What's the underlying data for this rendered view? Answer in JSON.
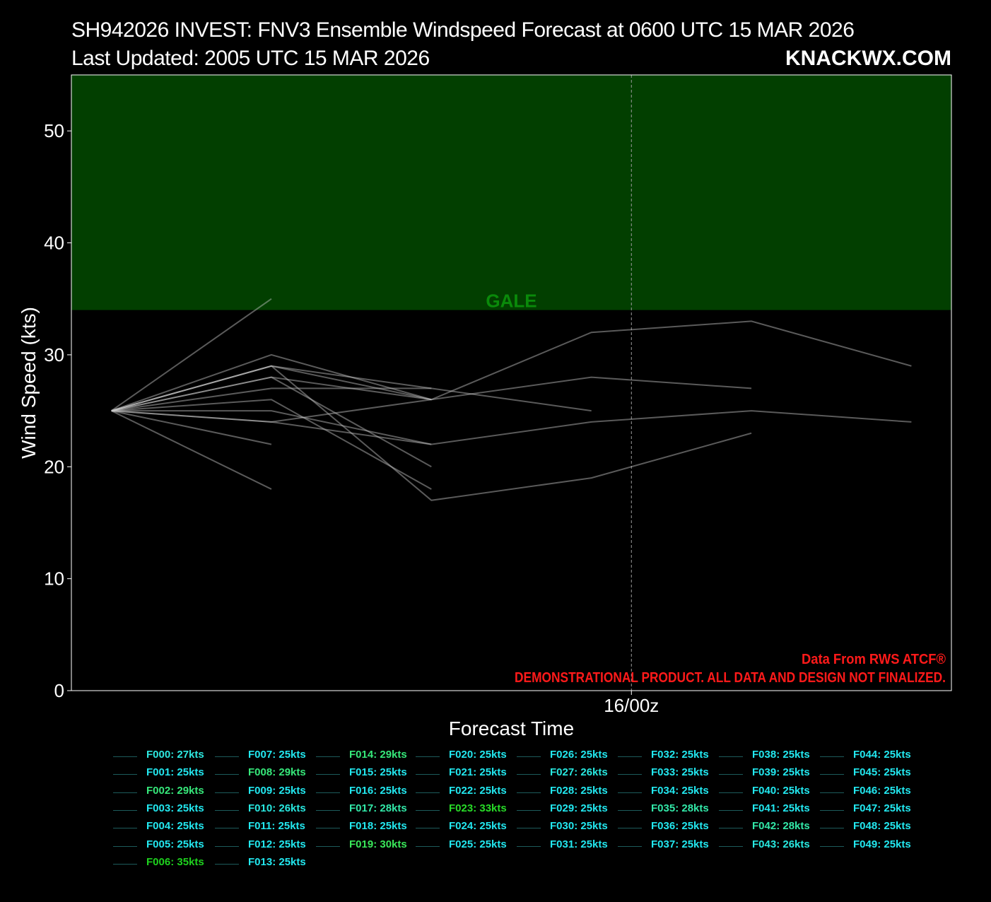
{
  "header": {
    "title": "SH942026 INVEST: FNV3 Ensemble Windspeed Forecast at 0600 UTC 15 MAR 2026",
    "subtitle": "Last Updated: 2005 UTC 15 MAR 2026",
    "brand": "KNACKWX.COM"
  },
  "chart_data": {
    "type": "line",
    "xlabel": "Forecast Time",
    "ylabel": "Wind Speed (kts)",
    "xticks": [
      {
        "step": 3.25,
        "label": "16/00z"
      }
    ],
    "ylim": [
      0,
      55
    ],
    "xlim": [
      -0.25,
      5.25
    ],
    "yticks": [
      0,
      10,
      20,
      30,
      40,
      50
    ],
    "threshold": {
      "label": "GALE",
      "value": 34,
      "color": "#023f00"
    },
    "vline_step": 3.25,
    "colors": {
      "line": "#8a8a8a",
      "gale_text": "#0a8a0a",
      "notice": "#ff1a1a"
    },
    "notices": [
      "Data From RWS ATCF®",
      "DEMONSTRATIONAL PRODUCT. ALL DATA AND DESIGN NOT FINALIZED."
    ],
    "series": [
      {
        "values": [
          25,
          35
        ]
      },
      {
        "values": [
          25,
          18
        ]
      },
      {
        "values": [
          25,
          22
        ]
      },
      {
        "values": [
          25,
          25,
          22
        ]
      },
      {
        "values": [
          25,
          24,
          22
        ]
      },
      {
        "values": [
          25,
          26,
          18
        ]
      },
      {
        "values": [
          25,
          27,
          27
        ]
      },
      {
        "values": [
          25,
          28,
          26,
          32,
          33,
          29
        ]
      },
      {
        "values": [
          25,
          28,
          20
        ]
      },
      {
        "values": [
          25,
          29,
          27,
          25
        ]
      },
      {
        "values": [
          25,
          29,
          26,
          28,
          27
        ]
      },
      {
        "values": [
          25,
          29,
          17,
          19,
          23
        ]
      },
      {
        "values": [
          25,
          30,
          26
        ]
      },
      {
        "values": [
          25,
          24,
          26
        ]
      },
      {
        "values": [
          null,
          null,
          22,
          24,
          25,
          24
        ]
      }
    ],
    "legend": [
      {
        "label": "F000: 27kts",
        "color": "#2de8e0"
      },
      {
        "label": "F001: 25kts",
        "color": "#22e8f0"
      },
      {
        "label": "F002: 29kts",
        "color": "#36e87a"
      },
      {
        "label": "F003: 25kts",
        "color": "#22e8f0"
      },
      {
        "label": "F004: 25kts",
        "color": "#22e8f0"
      },
      {
        "label": "F005: 25kts",
        "color": "#22e8f0"
      },
      {
        "label": "F006: 35kts",
        "color": "#1ed21e"
      },
      {
        "label": "F007: 25kts",
        "color": "#22e8f0"
      },
      {
        "label": "F008: 29kts",
        "color": "#36e87a"
      },
      {
        "label": "F009: 25kts",
        "color": "#22e8f0"
      },
      {
        "label": "F010: 26kts",
        "color": "#28e8e0"
      },
      {
        "label": "F011: 25kts",
        "color": "#22e8f0"
      },
      {
        "label": "F012: 25kts",
        "color": "#22e8f0"
      },
      {
        "label": "F013: 25kts",
        "color": "#22e8f0"
      },
      {
        "label": "F014: 29kts",
        "color": "#36e87a"
      },
      {
        "label": "F015: 25kts",
        "color": "#22e8f0"
      },
      {
        "label": "F016: 25kts",
        "color": "#22e8f0"
      },
      {
        "label": "F017: 28kts",
        "color": "#32e8a8"
      },
      {
        "label": "F018: 25kts",
        "color": "#22e8f0"
      },
      {
        "label": "F019: 30kts",
        "color": "#3ae85a"
      },
      {
        "label": "F020: 25kts",
        "color": "#22e8f0"
      },
      {
        "label": "F021: 25kts",
        "color": "#22e8f0"
      },
      {
        "label": "F022: 25kts",
        "color": "#22e8f0"
      },
      {
        "label": "F023: 33kts",
        "color": "#28dc28"
      },
      {
        "label": "F024: 25kts",
        "color": "#22e8f0"
      },
      {
        "label": "F025: 25kts",
        "color": "#22e8f0"
      },
      {
        "label": "F026: 25kts",
        "color": "#22e8f0"
      },
      {
        "label": "F027: 26kts",
        "color": "#28e8e0"
      },
      {
        "label": "F028: 25kts",
        "color": "#22e8f0"
      },
      {
        "label": "F029: 25kts",
        "color": "#22e8f0"
      },
      {
        "label": "F030: 25kts",
        "color": "#22e8f0"
      },
      {
        "label": "F031: 25kts",
        "color": "#22e8f0"
      },
      {
        "label": "F032: 25kts",
        "color": "#22e8f0"
      },
      {
        "label": "F033: 25kts",
        "color": "#22e8f0"
      },
      {
        "label": "F034: 25kts",
        "color": "#22e8f0"
      },
      {
        "label": "F035: 28kts",
        "color": "#32e8a8"
      },
      {
        "label": "F036: 25kts",
        "color": "#22e8f0"
      },
      {
        "label": "F037: 25kts",
        "color": "#22e8f0"
      },
      {
        "label": "F038: 25kts",
        "color": "#22e8f0"
      },
      {
        "label": "F039: 25kts",
        "color": "#22e8f0"
      },
      {
        "label": "F040: 25kts",
        "color": "#22e8f0"
      },
      {
        "label": "F041: 25kts",
        "color": "#22e8f0"
      },
      {
        "label": "F042: 28kts",
        "color": "#32e8a8"
      },
      {
        "label": "F043: 26kts",
        "color": "#28e8e0"
      },
      {
        "label": "F044: 25kts",
        "color": "#22e8f0"
      },
      {
        "label": "F045: 25kts",
        "color": "#22e8f0"
      },
      {
        "label": "F046: 25kts",
        "color": "#22e8f0"
      },
      {
        "label": "F047: 25kts",
        "color": "#22e8f0"
      },
      {
        "label": "F048: 25kts",
        "color": "#22e8f0"
      },
      {
        "label": "F049: 25kts",
        "color": "#22e8f0"
      }
    ]
  }
}
